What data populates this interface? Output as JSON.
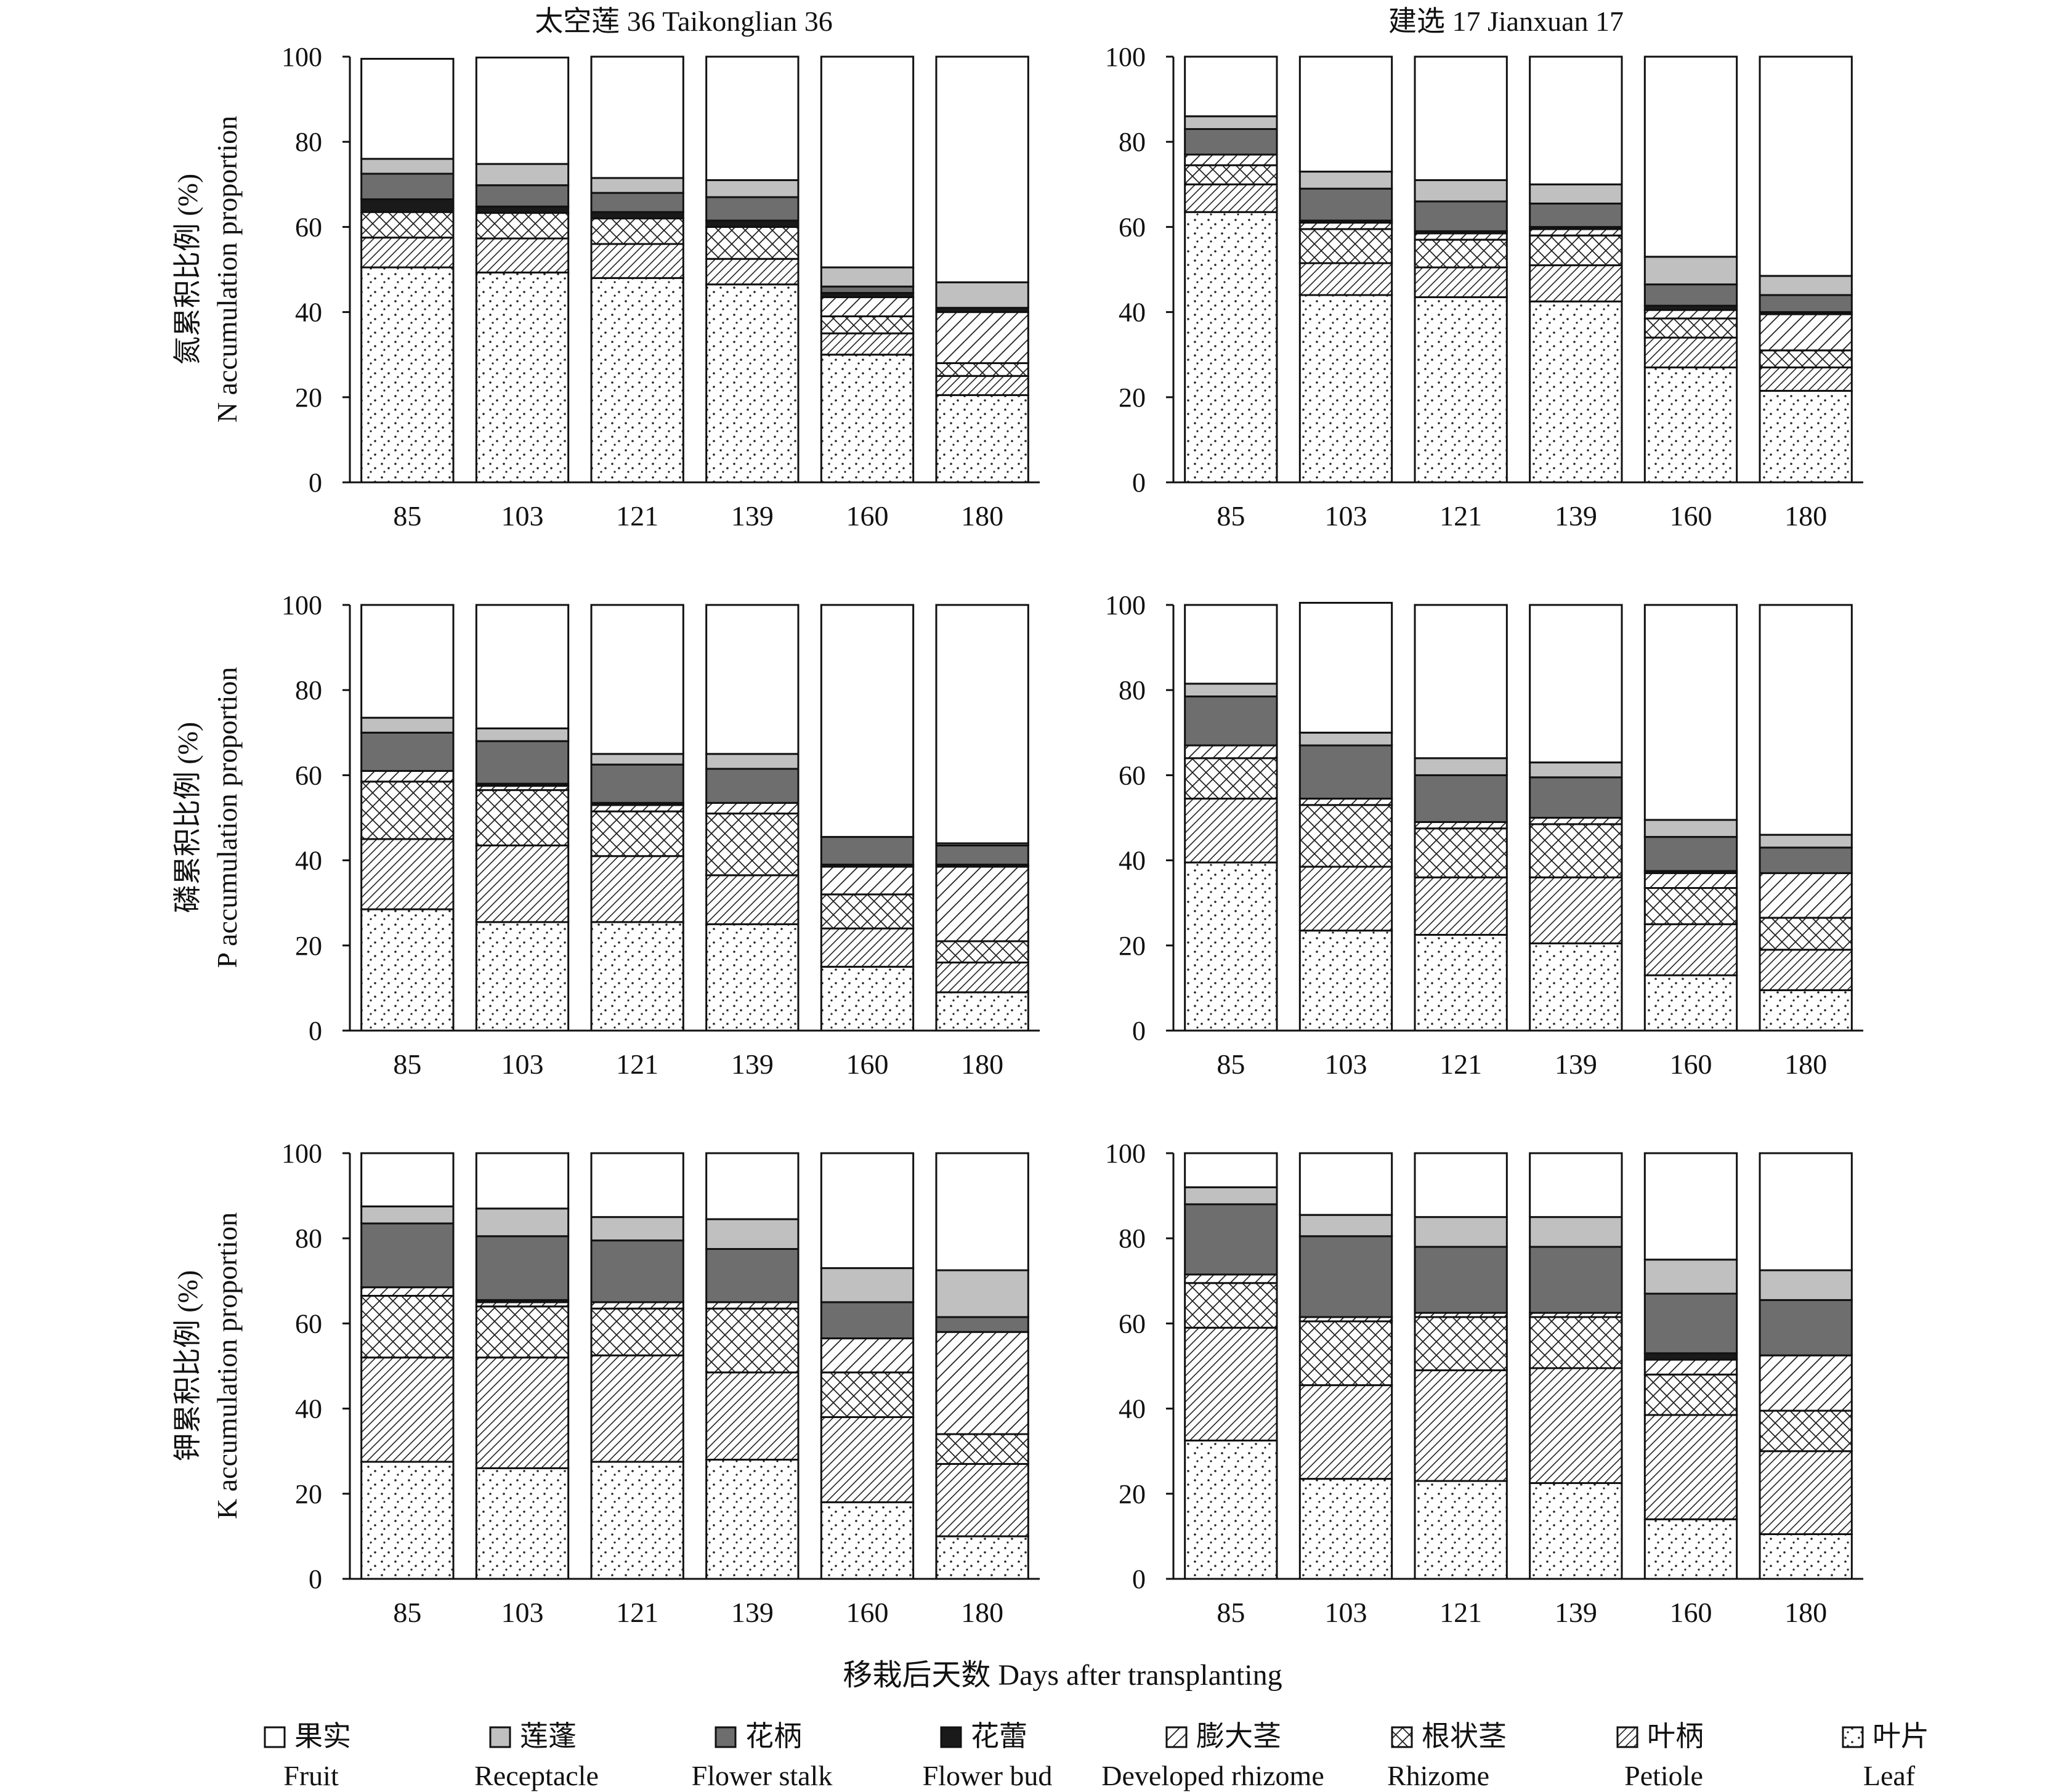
{
  "figure": {
    "x_axis_title": "移栽后天数 Days after transplanting",
    "column_titles": [
      "太空莲 36 Taikonglian 36",
      "建选 17 Jianxuan 17"
    ],
    "row_ylabels": [
      {
        "zh": "氮累积比例 (%)",
        "en": "N accumulation proportion"
      },
      {
        "zh": "磷累积比例 (%)",
        "en": "P accumulation proportion"
      },
      {
        "zh": "钾累积比例 (%)",
        "en": "K accumulation proportion"
      }
    ]
  },
  "legend": [
    {
      "zh": "果实",
      "en": "Fruit",
      "color": "#ffffff"
    },
    {
      "zh": "莲蓬",
      "en": "Receptacle",
      "color": "#c0c0c0"
    },
    {
      "zh": "花柄",
      "en": "Flower stalk",
      "color": "#6e6e6e"
    },
    {
      "zh": "花蕾",
      "en": "Flower bud",
      "color": "#1a1a1a"
    },
    {
      "zh": "膨大茎",
      "en": "Developed rhizome",
      "color": "#ffffff"
    },
    {
      "zh": "根状茎",
      "en": "Rhizome",
      "color": "#ffffff"
    },
    {
      "zh": "叶柄",
      "en": "Petiole",
      "color": "#ffffff"
    },
    {
      "zh": "叶片",
      "en": "Leaf",
      "color": "#ffffff"
    }
  ],
  "chart_data": [
    {
      "type": "bar",
      "stacked": true,
      "panel": "N - Taikonglian 36",
      "categories": [
        "85",
        "103",
        "121",
        "139",
        "160",
        "180"
      ],
      "ylim": [
        0,
        100
      ],
      "yticks": [
        0,
        20,
        40,
        60,
        80,
        100
      ],
      "series": [
        {
          "name": "Leaf",
          "values": [
            50.5,
            49.3,
            48.0,
            46.5,
            30.0,
            20.5
          ]
        },
        {
          "name": "Petiole",
          "values": [
            7.0,
            8.0,
            8.0,
            6.0,
            5.0,
            4.5
          ]
        },
        {
          "name": "Rhizome",
          "values": [
            6.0,
            6.0,
            6.0,
            7.5,
            4.0,
            3.0
          ]
        },
        {
          "name": "Developed rhizome",
          "values": [
            0,
            0,
            0,
            0,
            4.5,
            12.0
          ]
        },
        {
          "name": "Flower bud",
          "values": [
            3.0,
            1.5,
            1.5,
            1.5,
            1.0,
            1.0
          ]
        },
        {
          "name": "Flower stalk",
          "values": [
            6.0,
            5.0,
            4.5,
            5.5,
            1.5,
            0
          ]
        },
        {
          "name": "Receptacle",
          "values": [
            3.5,
            5.0,
            3.5,
            4.0,
            4.5,
            6.0
          ]
        },
        {
          "name": "Fruit",
          "values": [
            23.5,
            25.0,
            28.5,
            29.0,
            49.5,
            53.0
          ]
        }
      ]
    },
    {
      "type": "bar",
      "stacked": true,
      "panel": "N - Jianxuan 17",
      "categories": [
        "85",
        "103",
        "121",
        "139",
        "160",
        "180"
      ],
      "ylim": [
        0,
        100
      ],
      "yticks": [
        0,
        20,
        40,
        60,
        80,
        100
      ],
      "series": [
        {
          "name": "Leaf",
          "values": [
            63.5,
            44.0,
            43.5,
            42.5,
            27.0,
            21.5
          ]
        },
        {
          "name": "Petiole",
          "values": [
            6.5,
            7.5,
            7.0,
            8.5,
            7.0,
            5.5
          ]
        },
        {
          "name": "Rhizome",
          "values": [
            4.5,
            8.0,
            6.5,
            7.0,
            4.5,
            4.0
          ]
        },
        {
          "name": "Developed rhizome",
          "values": [
            2.5,
            1.5,
            1.5,
            1.5,
            2.0,
            8.5
          ]
        },
        {
          "name": "Flower bud",
          "values": [
            0,
            0.5,
            0.5,
            0.5,
            1.0,
            0.5
          ]
        },
        {
          "name": "Flower stalk",
          "values": [
            6.0,
            7.5,
            7.0,
            5.5,
            5.0,
            4.0
          ]
        },
        {
          "name": "Receptacle",
          "values": [
            3.0,
            4.0,
            5.0,
            4.5,
            6.5,
            4.5
          ]
        },
        {
          "name": "Fruit",
          "values": [
            14.0,
            27.0,
            29.0,
            30.0,
            47.0,
            51.5
          ]
        }
      ]
    },
    {
      "type": "bar",
      "stacked": true,
      "panel": "P - Taikonglian 36",
      "categories": [
        "85",
        "103",
        "121",
        "139",
        "160",
        "180"
      ],
      "ylim": [
        0,
        100
      ],
      "yticks": [
        0,
        20,
        40,
        60,
        80,
        100
      ],
      "series": [
        {
          "name": "Leaf",
          "values": [
            28.5,
            25.5,
            25.5,
            25.0,
            15.0,
            9.0
          ]
        },
        {
          "name": "Petiole",
          "values": [
            16.5,
            18.0,
            15.5,
            11.5,
            9.0,
            7.0
          ]
        },
        {
          "name": "Rhizome",
          "values": [
            13.5,
            13.0,
            10.5,
            14.5,
            8.0,
            5.0
          ]
        },
        {
          "name": "Developed rhizome",
          "values": [
            2.5,
            1.0,
            1.5,
            2.5,
            6.5,
            17.5
          ]
        },
        {
          "name": "Flower bud",
          "values": [
            0,
            0.5,
            0.5,
            0,
            0.5,
            0.5
          ]
        },
        {
          "name": "Flower stalk",
          "values": [
            9.0,
            10.0,
            9.0,
            8.0,
            6.5,
            4.5
          ]
        },
        {
          "name": "Receptacle",
          "values": [
            3.5,
            3.0,
            2.5,
            3.5,
            0,
            0.5
          ]
        },
        {
          "name": "Fruit",
          "values": [
            26.5,
            29.0,
            35.0,
            35.0,
            54.5,
            56.0
          ]
        }
      ]
    },
    {
      "type": "bar",
      "stacked": true,
      "panel": "P - Jianxuan 17",
      "categories": [
        "85",
        "103",
        "121",
        "139",
        "160",
        "180"
      ],
      "ylim": [
        0,
        100
      ],
      "yticks": [
        0,
        20,
        40,
        60,
        80,
        100
      ],
      "series": [
        {
          "name": "Leaf",
          "values": [
            39.5,
            23.5,
            22.5,
            20.5,
            13.0,
            9.5
          ]
        },
        {
          "name": "Petiole",
          "values": [
            15.0,
            15.0,
            13.5,
            15.5,
            12.0,
            9.5
          ]
        },
        {
          "name": "Rhizome",
          "values": [
            9.5,
            14.5,
            11.5,
            12.5,
            8.5,
            7.5
          ]
        },
        {
          "name": "Developed rhizome",
          "values": [
            3.0,
            1.5,
            1.5,
            1.5,
            3.5,
            10.5
          ]
        },
        {
          "name": "Flower bud",
          "values": [
            0,
            0,
            0,
            0,
            0.5,
            0
          ]
        },
        {
          "name": "Flower stalk",
          "values": [
            11.5,
            12.5,
            11.0,
            9.5,
            8.0,
            6.0
          ]
        },
        {
          "name": "Receptacle",
          "values": [
            3.0,
            3.0,
            4.0,
            3.5,
            4.0,
            3.0
          ]
        },
        {
          "name": "Fruit",
          "values": [
            18.5,
            30.5,
            36.0,
            37.0,
            50.5,
            54.0
          ]
        }
      ]
    },
    {
      "type": "bar",
      "stacked": true,
      "panel": "K - Taikonglian 36",
      "categories": [
        "85",
        "103",
        "121",
        "139",
        "160",
        "180"
      ],
      "ylim": [
        0,
        100
      ],
      "yticks": [
        0,
        20,
        40,
        60,
        80,
        100
      ],
      "series": [
        {
          "name": "Leaf",
          "values": [
            27.5,
            26.0,
            27.5,
            28.0,
            18.0,
            10.0
          ]
        },
        {
          "name": "Petiole",
          "values": [
            24.5,
            26.0,
            25.0,
            20.5,
            20.0,
            17.0
          ]
        },
        {
          "name": "Rhizome",
          "values": [
            14.5,
            12.0,
            11.0,
            15.0,
            10.5,
            7.0
          ]
        },
        {
          "name": "Developed rhizome",
          "values": [
            2.0,
            1.0,
            1.5,
            1.5,
            8.0,
            24.0
          ]
        },
        {
          "name": "Flower bud",
          "values": [
            0,
            0.5,
            0,
            0,
            0,
            0
          ]
        },
        {
          "name": "Flower stalk",
          "values": [
            15.0,
            15.0,
            14.5,
            12.5,
            8.5,
            3.5
          ]
        },
        {
          "name": "Receptacle",
          "values": [
            4.0,
            6.5,
            5.5,
            7.0,
            8.0,
            11.0
          ]
        },
        {
          "name": "Fruit",
          "values": [
            12.5,
            13.0,
            15.0,
            15.5,
            27.0,
            27.5
          ]
        }
      ]
    },
    {
      "type": "bar",
      "stacked": true,
      "panel": "K - Jianxuan 17",
      "categories": [
        "85",
        "103",
        "121",
        "139",
        "160",
        "180"
      ],
      "ylim": [
        0,
        100
      ],
      "yticks": [
        0,
        20,
        40,
        60,
        80,
        100
      ],
      "series": [
        {
          "name": "Leaf",
          "values": [
            32.5,
            23.5,
            23.0,
            22.5,
            14.0,
            10.5
          ]
        },
        {
          "name": "Petiole",
          "values": [
            26.5,
            22.0,
            26.0,
            27.0,
            24.5,
            19.5
          ]
        },
        {
          "name": "Rhizome",
          "values": [
            10.5,
            15.0,
            12.5,
            12.0,
            9.5,
            9.5
          ]
        },
        {
          "name": "Developed rhizome",
          "values": [
            2.0,
            1.0,
            1.0,
            1.0,
            3.5,
            13.0
          ]
        },
        {
          "name": "Flower bud",
          "values": [
            0,
            0,
            0,
            0,
            1.5,
            0
          ]
        },
        {
          "name": "Flower stalk",
          "values": [
            16.5,
            19.0,
            15.5,
            15.5,
            14.0,
            13.0
          ]
        },
        {
          "name": "Receptacle",
          "values": [
            4.0,
            5.0,
            7.0,
            7.0,
            8.0,
            7.0
          ]
        },
        {
          "name": "Fruit",
          "values": [
            8.0,
            14.5,
            15.0,
            15.0,
            25.0,
            27.5
          ]
        }
      ]
    }
  ]
}
